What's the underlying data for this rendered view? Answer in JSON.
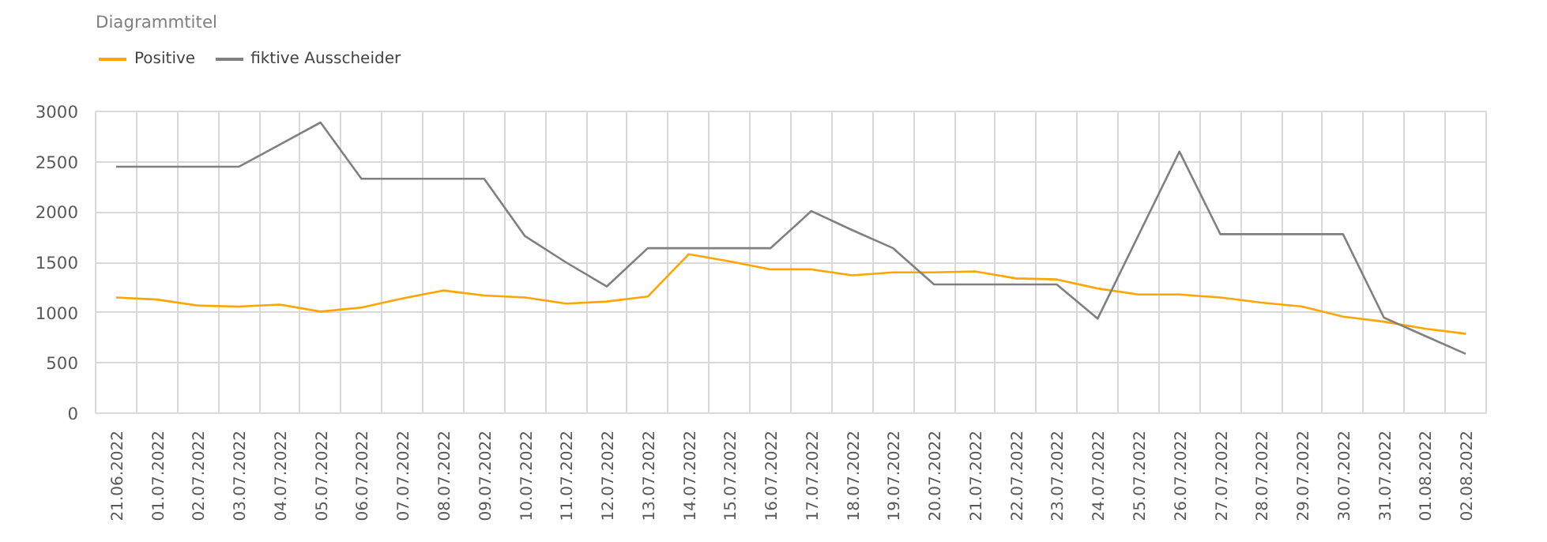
{
  "chart_data": {
    "type": "line",
    "title": "Diagrammtitel",
    "categories": [
      "21.06.2022",
      "01.07.2022",
      "02.07.2022",
      "03.07.2022",
      "04.07.2022",
      "05.07.2022",
      "06.07.2022",
      "07.07.2022",
      "08.07.2022",
      "09.07.2022",
      "10.07.2022",
      "11.07.2022",
      "12.07.2022",
      "13.07.2022",
      "14.07.2022",
      "15.07.2022",
      "16.07.2022",
      "17.07.2022",
      "18.07.2022",
      "19.07.2022",
      "20.07.2022",
      "21.07.2022",
      "22.07.2022",
      "23.07.2022",
      "24.07.2022",
      "25.07.2022",
      "26.07.2022",
      "27.07.2022",
      "28.07.2022",
      "29.07.2022",
      "30.07.2022",
      "31.07.2022",
      "01.08.2022",
      "02.08.2022"
    ],
    "series": [
      {
        "name": "Positive",
        "color": "#ffa500",
        "values": [
          1150,
          1130,
          1070,
          1060,
          1080,
          1010,
          1050,
          1140,
          1220,
          1170,
          1150,
          1090,
          1110,
          1160,
          1580,
          1510,
          1430,
          1430,
          1370,
          1400,
          1400,
          1410,
          1340,
          1330,
          1240,
          1180,
          1180,
          1150,
          1100,
          1060,
          960,
          910,
          840,
          790
        ]
      },
      {
        "name": "fiktive Ausscheider",
        "color": "#808080",
        "values": [
          2450,
          2450,
          2450,
          2450,
          2670,
          2890,
          2330,
          2330,
          2330,
          2330,
          1760,
          1500,
          1260,
          1640,
          1640,
          1640,
          1640,
          2010,
          1820,
          1640,
          1280,
          1280,
          1280,
          1280,
          940,
          1770,
          2600,
          1780,
          1780,
          1780,
          1780,
          950,
          770,
          590
        ]
      }
    ],
    "ylim": [
      0,
      3000
    ],
    "yticks": [
      0,
      500,
      1000,
      1500,
      2000,
      2500,
      3000
    ],
    "grid": true,
    "legend": "top left",
    "marker": "none",
    "line_style": "solid"
  }
}
